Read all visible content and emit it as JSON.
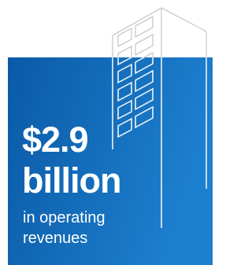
{
  "headline": "$2.9",
  "unit": "billion",
  "caption": [
    "in operating",
    "revenues"
  ]
}
